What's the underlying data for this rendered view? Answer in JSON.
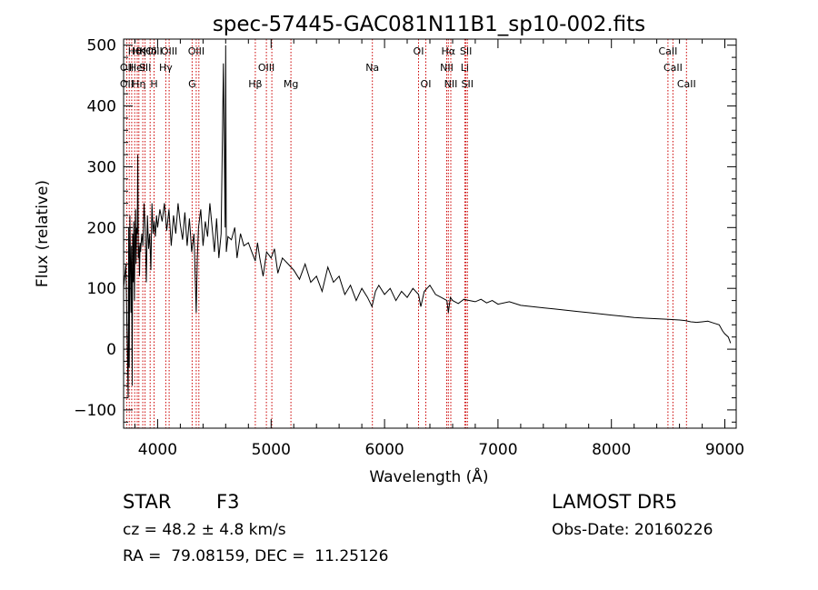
{
  "chart_data": {
    "type": "line",
    "title": "spec-57445-GAC081N11B1_sp10-002.fits",
    "xlabel": "Wavelength (Å)",
    "ylabel": "Flux (relative)",
    "xlim": [
      3700,
      9100
    ],
    "ylim": [
      -130,
      510
    ],
    "x_ticks": [
      {
        "value": 4000,
        "label": "4000"
      },
      {
        "value": 5000,
        "label": "5000"
      },
      {
        "value": 6000,
        "label": "6000"
      },
      {
        "value": 7000,
        "label": "7000"
      },
      {
        "value": 8000,
        "label": "8000"
      },
      {
        "value": 9000,
        "label": "9000"
      }
    ],
    "y_ticks": [
      {
        "value": -100,
        "label": "−100"
      },
      {
        "value": 0,
        "label": "0"
      },
      {
        "value": 100,
        "label": "100"
      },
      {
        "value": 200,
        "label": "200"
      },
      {
        "value": 300,
        "label": "300"
      },
      {
        "value": 400,
        "label": "400"
      },
      {
        "value": 500,
        "label": "500"
      }
    ],
    "series": [
      {
        "color": "#000000",
        "x": [
          3700,
          3720,
          3740,
          3745,
          3750,
          3755,
          3760,
          3765,
          3770,
          3775,
          3780,
          3785,
          3790,
          3795,
          3800,
          3805,
          3810,
          3815,
          3820,
          3825,
          3830,
          3835,
          3840,
          3845,
          3850,
          3860,
          3870,
          3880,
          3890,
          3900,
          3910,
          3920,
          3930,
          3940,
          3950,
          3960,
          3970,
          3980,
          3990,
          4000,
          4020,
          4040,
          4060,
          4080,
          4100,
          4120,
          4140,
          4160,
          4180,
          4200,
          4220,
          4240,
          4260,
          4280,
          4300,
          4320,
          4340,
          4350,
          4360,
          4380,
          4400,
          4420,
          4440,
          4460,
          4480,
          4500,
          4520,
          4540,
          4560,
          4580,
          4595,
          4600,
          4605,
          4620,
          4650,
          4680,
          4700,
          4730,
          4760,
          4800,
          4830,
          4861,
          4880,
          4900,
          4930,
          4960,
          5000,
          5030,
          5060,
          5100,
          5150,
          5200,
          5250,
          5300,
          5350,
          5400,
          5450,
          5500,
          5550,
          5600,
          5650,
          5700,
          5750,
          5800,
          5850,
          5890,
          5920,
          5950,
          6000,
          6050,
          6100,
          6150,
          6200,
          6250,
          6300,
          6320,
          6350,
          6400,
          6450,
          6500,
          6550,
          6563,
          6580,
          6600,
          6650,
          6700,
          6750,
          6800,
          6850,
          6900,
          6950,
          7000,
          7100,
          7200,
          7300,
          7400,
          7500,
          7600,
          7700,
          7800,
          7900,
          8000,
          8100,
          8200,
          8300,
          8400,
          8500,
          8600,
          8650,
          8700,
          8750,
          8800,
          8850,
          8900,
          8950,
          8980,
          9000,
          9030,
          9050
        ],
        "y": [
          100,
          140,
          -80,
          200,
          -30,
          220,
          150,
          60,
          170,
          -60,
          190,
          110,
          210,
          80,
          180,
          230,
          140,
          200,
          190,
          320,
          150,
          170,
          120,
          175,
          160,
          190,
          170,
          240,
          200,
          110,
          220,
          165,
          190,
          130,
          240,
          190,
          210,
          185,
          220,
          200,
          230,
          210,
          240,
          195,
          230,
          170,
          220,
          190,
          240,
          205,
          180,
          225,
          170,
          215,
          160,
          190,
          60,
          150,
          200,
          230,
          170,
          210,
          185,
          240,
          200,
          160,
          215,
          150,
          190,
          470,
          200,
          500,
          160,
          185,
          180,
          200,
          150,
          190,
          170,
          175,
          160,
          145,
          175,
          150,
          120,
          160,
          150,
          165,
          125,
          150,
          140,
          130,
          115,
          140,
          110,
          120,
          95,
          135,
          110,
          120,
          90,
          105,
          80,
          100,
          85,
          70,
          95,
          105,
          90,
          100,
          80,
          95,
          85,
          100,
          90,
          70,
          95,
          105,
          90,
          85,
          80,
          60,
          85,
          80,
          75,
          82,
          80,
          78,
          82,
          76,
          80,
          74,
          78,
          72,
          70,
          68,
          66,
          64,
          62,
          60,
          58,
          56,
          54,
          52,
          51,
          50,
          49,
          48,
          47,
          45,
          44,
          45,
          46,
          43,
          40,
          30,
          25,
          20,
          10
        ]
      }
    ],
    "grid": false,
    "legend": "none",
    "lines": {
      "color": "#cc0000",
      "row1_labels": [
        {
          "x": 3798,
          "text": "Hθ"
        },
        {
          "x": 3835,
          "text": "Hη"
        },
        {
          "x": 3869,
          "text": "K"
        },
        {
          "x": 3934,
          "text": "Hδ"
        },
        {
          "x": 3968,
          "text": "OIII"
        },
        {
          "x": 4101,
          "text": "OIII"
        },
        {
          "x": 4340,
          "text": "OIII"
        },
        {
          "x": 6300,
          "text": "OI"
        },
        {
          "x": 6563,
          "text": "Hα"
        },
        {
          "x": 6717,
          "text": "SII"
        },
        {
          "x": 8498,
          "text": "CaII"
        }
      ],
      "row2_labels": [
        {
          "x": 3727,
          "text": "OII"
        },
        {
          "x": 3820,
          "text": "HeI"
        },
        {
          "x": 3889,
          "text": "SII"
        },
        {
          "x": 4072,
          "text": "Hγ"
        },
        {
          "x": 4959,
          "text": "OIII"
        },
        {
          "x": 5893,
          "text": "Na"
        },
        {
          "x": 6548,
          "text": "NII"
        },
        {
          "x": 6708,
          "text": "Li"
        },
        {
          "x": 8542,
          "text": "CaII"
        }
      ],
      "row3_labels": [
        {
          "x": 3727,
          "text": "OII"
        },
        {
          "x": 3835,
          "text": "Hη"
        },
        {
          "x": 3968,
          "text": "H"
        },
        {
          "x": 4304,
          "text": "G"
        },
        {
          "x": 4861,
          "text": "Hβ"
        },
        {
          "x": 5175,
          "text": "Mg"
        },
        {
          "x": 6364,
          "text": "OI"
        },
        {
          "x": 6584,
          "text": "NII"
        },
        {
          "x": 6731,
          "text": "SII"
        },
        {
          "x": 8662,
          "text": "CaII"
        }
      ],
      "wavelengths": [
        3727,
        3750,
        3771,
        3798,
        3820,
        3835,
        3869,
        3889,
        3934,
        3968,
        4072,
        4101,
        4304,
        4340,
        4363,
        4861,
        4959,
        5007,
        5175,
        5893,
        6300,
        6364,
        6548,
        6563,
        6584,
        6708,
        6717,
        6731,
        8498,
        8542,
        8662
      ]
    }
  },
  "info": {
    "object_class": "STAR",
    "subclass": "F3",
    "survey": "LAMOST DR5",
    "redshift": "cz = 48.2 ± 4.8 km/s",
    "obs_date": "Obs-Date: 20160226",
    "coords": "RA =  79.08159, DEC =  11.25126"
  }
}
